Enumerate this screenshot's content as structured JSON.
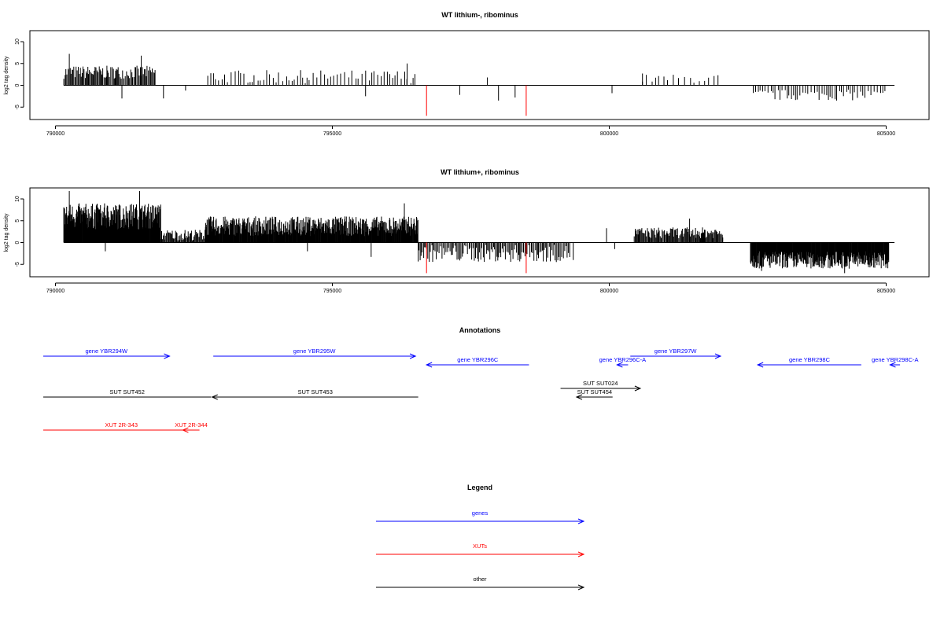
{
  "chart_data": [
    {
      "type": "bar",
      "title": "WT lithium-, ribominus",
      "ylabel": "log2 tag density",
      "xlabel": "",
      "xlim": [
        789800,
        805800
      ],
      "ylim": [
        -7.5,
        12.5
      ],
      "x_ticks": [
        790000,
        795000,
        800000,
        805000
      ],
      "x_tick_labels": [
        "790000",
        "795000",
        "800000",
        "805000"
      ],
      "y_ticks": [
        -5,
        0,
        5,
        10
      ],
      "y_tick_labels": [
        "-5",
        "0",
        "5",
        "10"
      ],
      "baseline_range": [
        790150,
        805150
      ],
      "grid": false,
      "series": [
        {
          "color": "#000000",
          "segments": [
            {
              "from": 790150,
              "to": 791800,
              "spacing": 18,
              "min": 1.5,
              "max": 4.5
            },
            {
              "from": 792750,
              "to": 796500,
              "spacing": 55,
              "min": 0.5,
              "max": 3.5
            },
            {
              "from": 800600,
              "to": 802000,
              "spacing": 90,
              "min": 0.5,
              "max": 2.5
            },
            {
              "from": 802600,
              "to": 805000,
              "spacing": 45,
              "min": -3.5,
              "max": -1
            }
          ],
          "peaks": [
            {
              "x": 790250,
              "y": 7.2
            },
            {
              "x": 791550,
              "y": 6.8
            },
            {
              "x": 796350,
              "y": 5
            },
            {
              "x": 797800,
              "y": 1.8
            },
            {
              "x": 800600,
              "y": 2.7
            },
            {
              "x": 791200,
              "y": -3
            },
            {
              "x": 791950,
              "y": -3
            },
            {
              "x": 792350,
              "y": -1.2
            },
            {
              "x": 795600,
              "y": -2.5
            },
            {
              "x": 797300,
              "y": -2.2
            },
            {
              "x": 798000,
              "y": -3.5
            },
            {
              "x": 798300,
              "y": -2.8
            },
            {
              "x": 800050,
              "y": -1.8
            }
          ]
        },
        {
          "color": "#ff0000",
          "values": [
            [
              796700,
              -7
            ],
            [
              798500,
              -7
            ]
          ]
        }
      ]
    },
    {
      "type": "bar",
      "title": "WT lithium+, ribominus",
      "ylabel": "log2 tag density",
      "xlabel": "",
      "xlim": [
        789800,
        805800
      ],
      "ylim": [
        -7.5,
        12.5
      ],
      "x_ticks": [
        790000,
        795000,
        800000,
        805000
      ],
      "x_tick_labels": [
        "790000",
        "795000",
        "800000",
        "805000"
      ],
      "y_ticks": [
        -5,
        0,
        5,
        10
      ],
      "y_tick_labels": [
        "-5",
        "0",
        "5",
        "10"
      ],
      "baseline_range": [
        790150,
        805150
      ],
      "grid": false,
      "series": [
        {
          "color": "#000000",
          "segments": [
            {
              "from": 790150,
              "to": 791900,
              "spacing": 7,
              "min": 3,
              "max": 9
            },
            {
              "from": 791900,
              "to": 792700,
              "spacing": 14,
              "min": 0.5,
              "max": 3
            },
            {
              "from": 792700,
              "to": 796550,
              "spacing": 8,
              "min": 1.5,
              "max": 6
            },
            {
              "from": 796550,
              "to": 799300,
              "spacing": 22,
              "min": -4.5,
              "max": -0.5
            },
            {
              "from": 800450,
              "to": 802050,
              "spacing": 14,
              "min": 1,
              "max": 3.5
            },
            {
              "from": 802550,
              "to": 805050,
              "spacing": 8,
              "min": -6,
              "max": -2
            }
          ],
          "peaks": [
            {
              "x": 790250,
              "y": 11.8
            },
            {
              "x": 791520,
              "y": 11.8
            },
            {
              "x": 796300,
              "y": 9
            },
            {
              "x": 799950,
              "y": 3.3
            },
            {
              "x": 801450,
              "y": 5.5
            },
            {
              "x": 790900,
              "y": -2
            },
            {
              "x": 794550,
              "y": -2
            },
            {
              "x": 795700,
              "y": -3.3
            },
            {
              "x": 799350,
              "y": -4
            },
            {
              "x": 800100,
              "y": -1.5
            },
            {
              "x": 802750,
              "y": -6.5
            },
            {
              "x": 804250,
              "y": -7
            }
          ]
        },
        {
          "color": "#ff0000",
          "values": [
            [
              796700,
              -7
            ],
            [
              798500,
              -7
            ]
          ]
        }
      ]
    }
  ],
  "annotations": {
    "title": "Annotations",
    "features": [
      {
        "label": "gene YBR294W",
        "kind": "gene",
        "color": "#0000ff",
        "from": 789780,
        "to": 792060,
        "strand": "+",
        "row": 0
      },
      {
        "label": "gene YBR295W",
        "kind": "gene",
        "color": "#0000ff",
        "from": 792850,
        "to": 796500,
        "strand": "+",
        "row": 0
      },
      {
        "label": "gene YBR296C",
        "kind": "gene",
        "color": "#0000ff",
        "from": 796700,
        "to": 798550,
        "strand": "-",
        "row": 1
      },
      {
        "label": "gene YBR296C-A",
        "kind": "gene",
        "color": "#0000ff",
        "from": 800140,
        "to": 800340,
        "strand": "-",
        "row": 1
      },
      {
        "label": "gene YBR297W",
        "kind": "gene",
        "color": "#0000ff",
        "from": 800380,
        "to": 802010,
        "strand": "+",
        "row": 0
      },
      {
        "label": "gene YBR298C",
        "kind": "gene",
        "color": "#0000ff",
        "from": 802680,
        "to": 804550,
        "strand": "-",
        "row": 1
      },
      {
        "label": "gene YBR298C-A",
        "kind": "gene",
        "color": "#0000ff",
        "from": 805070,
        "to": 805250,
        "strand": "-",
        "row": 1
      },
      {
        "label": "SUT SUT452",
        "kind": "other",
        "color": "#000000",
        "from": 789780,
        "to": 792810,
        "strand": "none",
        "row": 2
      },
      {
        "label": "SUT SUT453",
        "kind": "other",
        "color": "#000000",
        "from": 792830,
        "to": 796550,
        "strand": "-",
        "row": 2
      },
      {
        "label": "SUT SUT024",
        "kind": "other",
        "color": "#000000",
        "from": 799120,
        "to": 800560,
        "strand": "+",
        "row": 3
      },
      {
        "label": "SUT SUT454",
        "kind": "other",
        "color": "#000000",
        "from": 799410,
        "to": 800060,
        "strand": "-",
        "row": 4
      },
      {
        "label": "XUT 2R-343",
        "kind": "xut",
        "color": "#ff0000",
        "from": 789780,
        "to": 792600,
        "strand": "none",
        "row": 5
      },
      {
        "label": "XUT 2R-344",
        "kind": "xut",
        "color": "#ff0000",
        "from": 792300,
        "to": 792600,
        "strand": "-",
        "row": 5
      }
    ]
  },
  "legend": {
    "title": "Legend",
    "items": [
      {
        "label": "genes",
        "color": "#0000ff"
      },
      {
        "label": "XUTs",
        "color": "#ff0000"
      },
      {
        "label": "other",
        "color": "#000000"
      }
    ]
  }
}
